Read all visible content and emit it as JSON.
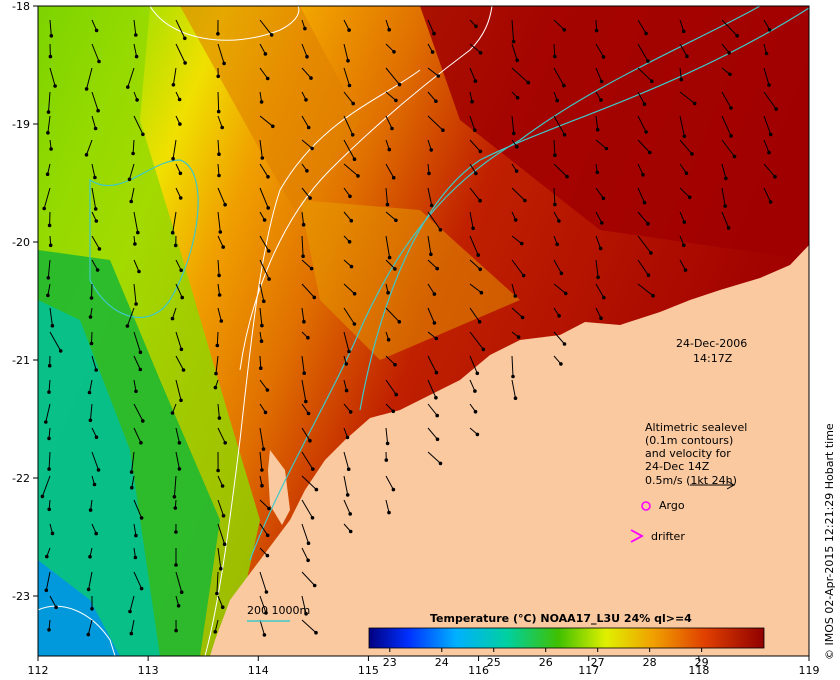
{
  "map": {
    "lon_ticks": [
      "112",
      "113",
      "114",
      "115",
      "116",
      "117",
      "118",
      "119"
    ],
    "lat_ticks": [
      "-18",
      "-19",
      "-20",
      "-21",
      "-22",
      "-23"
    ],
    "date_label": "24-Dec-2006",
    "time_label": "14:17Z",
    "altimetry_note": [
      "Altimetric sealevel",
      "(0.1m contours)",
      "and velocity for",
      "24-Dec 14Z",
      "0.5m/s (1kt 24h)"
    ],
    "argo_label": "Argo",
    "drifter_label": "drifter",
    "isobath_label": "200  1000m",
    "colorbar_title": "Temperature (°C) NOAA17_L3U 24% ql>=4",
    "colorbar_ticks": [
      "23",
      "24",
      "25",
      "26",
      "27",
      "28",
      "29"
    ],
    "colorbar_range": [
      22.6,
      30.2
    ],
    "credit": "© IMOS 02-Apr-2015 12:21:29 Hobart time",
    "colors": {
      "land": "#fac9a0",
      "isobath": "#40c8c8",
      "argo": "#ff00ff",
      "drifter": "#ff00ff",
      "contour": "#ffffff"
    }
  }
}
